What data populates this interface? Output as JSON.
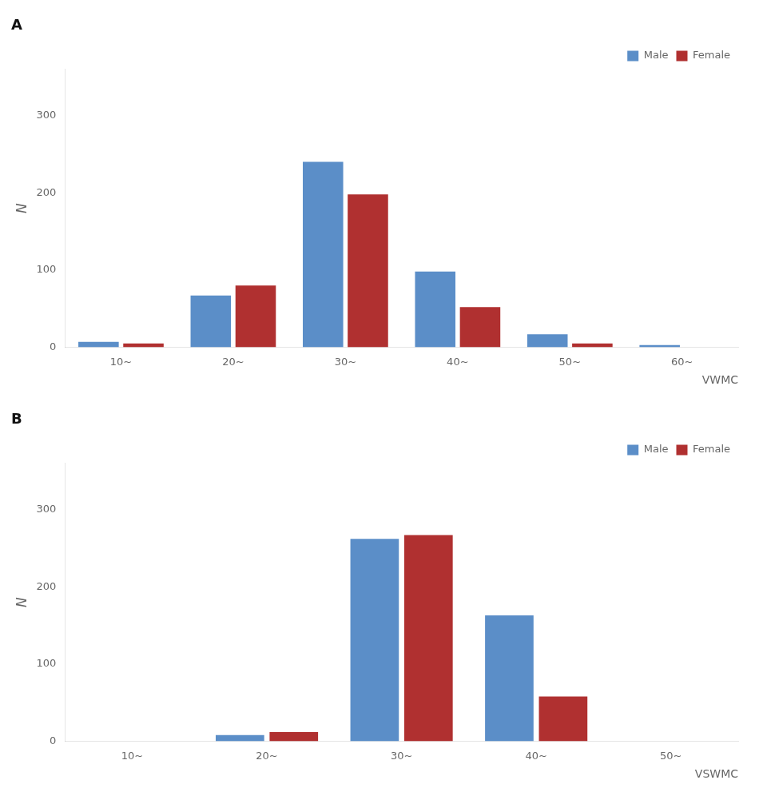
{
  "chart_data": [
    {
      "type": "bar",
      "title": "A",
      "xlabel": "VWMC",
      "ylabel": "N",
      "categories": [
        "10~",
        "20~",
        "30~",
        "40~",
        "50~",
        "60~"
      ],
      "series": [
        {
          "name": "Male",
          "color": "#5b8ec8",
          "values": [
            7,
            67,
            240,
            98,
            17,
            3
          ]
        },
        {
          "name": "Female",
          "color": "#b03030",
          "values": [
            5,
            80,
            198,
            52,
            5,
            0
          ]
        }
      ],
      "ylim": [
        0,
        360
      ],
      "yticks": [
        0,
        100,
        200,
        300
      ],
      "grid": false,
      "legend": "upper right"
    },
    {
      "type": "bar",
      "title": "B",
      "xlabel": "VSWMC",
      "ylabel": "N",
      "categories": [
        "10~",
        "20~",
        "30~",
        "40~",
        "50~"
      ],
      "series": [
        {
          "name": "Male",
          "color": "#5b8ec8",
          "values": [
            0,
            8,
            262,
            163,
            0
          ]
        },
        {
          "name": "Female",
          "color": "#b03030",
          "values": [
            0,
            12,
            267,
            58,
            0
          ]
        }
      ],
      "ylim": [
        0,
        360
      ],
      "yticks": [
        0,
        100,
        200,
        300
      ],
      "grid": false,
      "legend": "upper right"
    }
  ]
}
